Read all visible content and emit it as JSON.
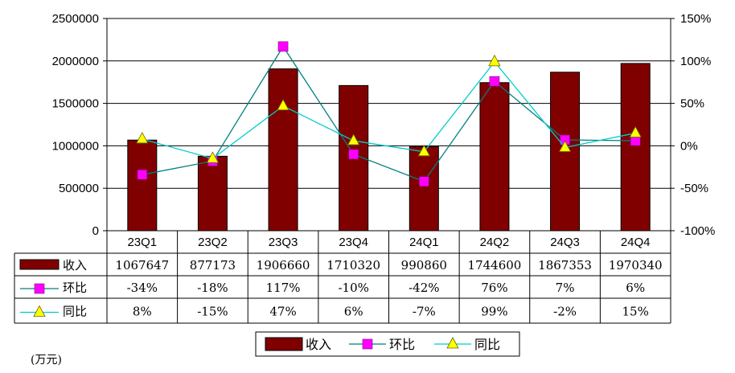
{
  "chart_data": {
    "type": "bar",
    "categories": [
      "23Q1",
      "23Q2",
      "23Q3",
      "23Q4",
      "24Q1",
      "24Q2",
      "24Q3",
      "24Q4"
    ],
    "series": [
      {
        "name": "收入",
        "type": "bar",
        "axis": "left",
        "values": [
          1067647,
          877173,
          1906660,
          1710320,
          990860,
          1744600,
          1867353,
          1970340
        ],
        "labels": [
          "1067647",
          "877173",
          "1906660",
          "1710320",
          "990860",
          "1744600",
          "1867353",
          "1970340"
        ],
        "color": "#800000"
      },
      {
        "name": "环比",
        "type": "line",
        "axis": "right",
        "marker": "square",
        "values": [
          -34,
          -18,
          117,
          -10,
          -42,
          76,
          7,
          6
        ],
        "labels": [
          "-34%",
          "-18%",
          "117%",
          "-10%",
          "-42%",
          "76%",
          "7%",
          "6%"
        ],
        "color": "#008080",
        "marker_color": "#ff00ff"
      },
      {
        "name": "同比",
        "type": "line",
        "axis": "right",
        "marker": "triangle",
        "values": [
          8,
          -15,
          47,
          6,
          -7,
          99,
          -2,
          15
        ],
        "labels": [
          "8%",
          "-15%",
          "47%",
          "6%",
          "-7%",
          "99%",
          "-2%",
          "15%"
        ],
        "color": "#00cccc",
        "marker_color": "#ffff00"
      }
    ],
    "y_left": {
      "range": [
        0,
        2500000
      ],
      "ticks": [
        "0",
        "500000",
        "1000000",
        "1500000",
        "2000000",
        "2500000"
      ]
    },
    "y_right": {
      "range": [
        -100,
        150
      ],
      "ticks": [
        "-100%",
        "-50%",
        "0%",
        "50%",
        "100%",
        "150%"
      ]
    },
    "grid": true,
    "legend_position": "bottom",
    "unit_note": "(万元)"
  }
}
